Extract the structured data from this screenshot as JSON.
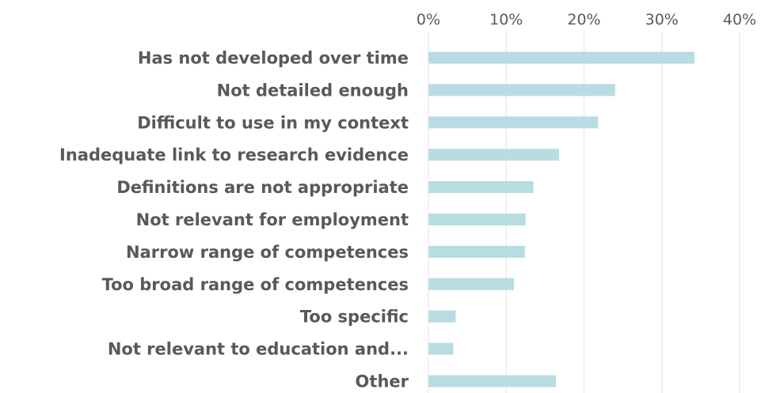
{
  "chart_data": {
    "type": "bar",
    "orientation": "horizontal",
    "categories": [
      "Has not developed over time",
      "Not detailed enough",
      "Difficult to use in my context",
      "Inadequate link to research evidence",
      "Definitions are not appropriate",
      "Not relevant for employment",
      "Narrow range of competences",
      "Too broad range of competences",
      "Too specific",
      "Not relevant to education and...",
      "Other"
    ],
    "values": [
      34.2,
      24.0,
      21.8,
      16.8,
      13.5,
      12.5,
      12.4,
      11.0,
      3.5,
      3.2,
      16.4
    ],
    "xlim": [
      0,
      40
    ],
    "x_ticks": [
      "0%",
      "10%",
      "20%",
      "30%",
      "40%"
    ],
    "x_tick_values": [
      0,
      10,
      20,
      30,
      40
    ],
    "title": "",
    "xlabel": "",
    "ylabel": "",
    "grid": true,
    "x_axis_position": "top",
    "bar_color": "#b7dde3"
  }
}
